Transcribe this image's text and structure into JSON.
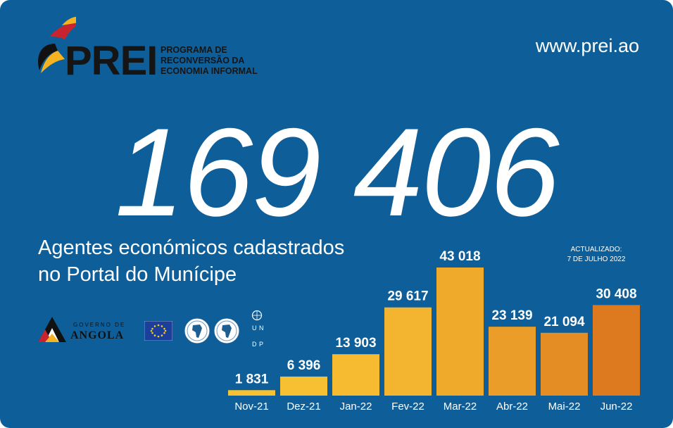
{
  "header": {
    "logo_word": "PREI",
    "logo_subtitle": [
      "PROGRAMA DE",
      "RECONVERSÃO DA",
      "ECONOMIA INFORMAL"
    ],
    "website": "www.prei.ao"
  },
  "headline": {
    "total": "169 406",
    "caption_line1": "Agentes económicos cadastrados",
    "caption_line2": "no Portal do Munícipe"
  },
  "updated": {
    "label": "ACTUALIZADO:",
    "date": "7 DE JULHO 2022"
  },
  "partners": {
    "gov_line1": "GOVERNO DE",
    "gov_line2": "ANGOLA",
    "undp_letters": [
      "U",
      "N",
      "D",
      "P"
    ]
  },
  "colors": {
    "background": "#0e5f99",
    "bar_light": "#f8c132",
    "bar_dark": "#dd7a1f",
    "text": "#ffffff"
  },
  "chart_data": {
    "type": "bar",
    "categories": [
      "Nov-21",
      "Dez-21",
      "Jan-22",
      "Fev-22",
      "Mar-22",
      "Abr-22",
      "Mai-22",
      "Jun-22"
    ],
    "values": [
      1831,
      6396,
      13903,
      29617,
      43018,
      23139,
      21094,
      30408
    ],
    "value_labels": [
      "1 831",
      "6 396",
      "13 903",
      "29 617",
      "43 018",
      "23 139",
      "21 094",
      "30 408"
    ],
    "title": "",
    "xlabel": "",
    "ylabel": "",
    "ylim": [
      0,
      43018
    ],
    "grid": false,
    "legend": "none"
  }
}
